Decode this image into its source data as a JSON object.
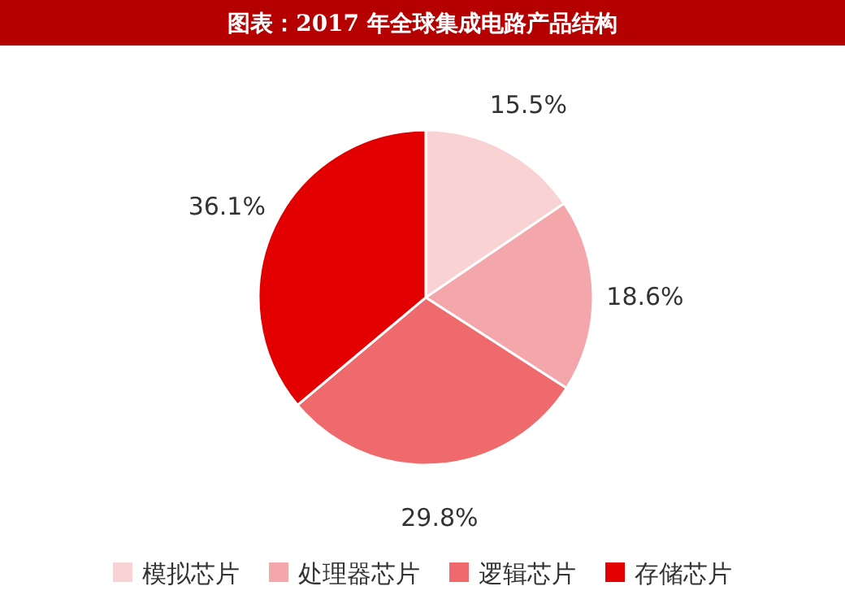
{
  "chart_data": {
    "type": "pie",
    "title": "图表：2017 年全球集成电路产品结构",
    "categories": [
      "模拟芯片",
      "处理器芯片",
      "逻辑芯片",
      "存储芯片"
    ],
    "values": [
      15.5,
      18.6,
      29.8,
      36.1
    ],
    "colors": [
      "#f9d3d3",
      "#f4a7ab",
      "#ee6a6d",
      "#e30000"
    ],
    "value_labels": [
      "15.5%",
      "18.6%",
      "29.8%",
      "36.1%"
    ],
    "legend": "bottom"
  }
}
